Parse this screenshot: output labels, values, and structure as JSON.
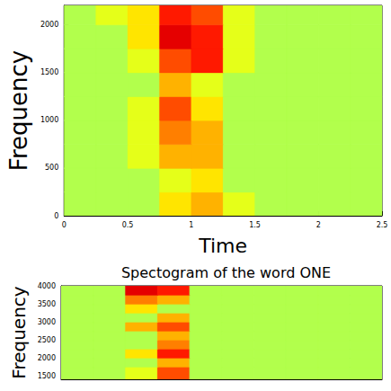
{
  "chart_data": [
    {
      "type": "heatmap",
      "x_label": "Time",
      "y_label": "Frequency",
      "xlim": [
        0,
        2.5
      ],
      "xticks": [
        0,
        0.5,
        1,
        1.5,
        2,
        2.5
      ],
      "ylim": [
        0,
        2200
      ],
      "yticks": [
        0,
        500,
        1000,
        1500,
        2000
      ],
      "x_edges": [
        0,
        0.25,
        0.5,
        0.75,
        1,
        1.25,
        1.5,
        1.75,
        2,
        2.25,
        2.5
      ],
      "y_edges": [
        0,
        250,
        500,
        750,
        1000,
        1250,
        1500,
        1750,
        2000,
        2200
      ],
      "clim": [
        0,
        1
      ],
      "cells": [
        [
          0.55,
          0.55,
          0.55,
          0.65,
          0.7,
          0.6,
          0.55,
          0.55,
          0.55,
          0.55
        ],
        [
          0.55,
          0.55,
          0.55,
          0.6,
          0.65,
          0.55,
          0.55,
          0.55,
          0.55,
          0.55
        ],
        [
          0.55,
          0.55,
          0.6,
          0.7,
          0.7,
          0.55,
          0.55,
          0.55,
          0.55,
          0.55
        ],
        [
          0.55,
          0.55,
          0.6,
          0.75,
          0.7,
          0.55,
          0.55,
          0.55,
          0.55,
          0.55
        ],
        [
          0.55,
          0.55,
          0.6,
          0.8,
          0.65,
          0.55,
          0.55,
          0.55,
          0.55,
          0.55
        ],
        [
          0.55,
          0.55,
          0.55,
          0.7,
          0.6,
          0.55,
          0.55,
          0.55,
          0.55,
          0.55
        ],
        [
          0.55,
          0.55,
          0.6,
          0.8,
          0.85,
          0.6,
          0.55,
          0.55,
          0.55,
          0.55
        ],
        [
          0.55,
          0.55,
          0.65,
          0.9,
          0.85,
          0.6,
          0.55,
          0.55,
          0.55,
          0.55
        ],
        [
          0.55,
          0.6,
          0.65,
          0.85,
          0.8,
          0.6,
          0.55,
          0.55,
          0.55,
          0.55
        ]
      ]
    },
    {
      "type": "heatmap",
      "title": "Spectogram of the word ONE",
      "y_label": "Frequency",
      "tick_labels": "y",
      "xlim": [
        0,
        2.5
      ],
      "ylim": [
        1400,
        4000
      ],
      "yticks": [
        1500,
        2000,
        2500,
        3000,
        3500,
        4000
      ],
      "x_edges": [
        0,
        0.25,
        0.5,
        0.75,
        1,
        1.25,
        1.5,
        1.75,
        2,
        2.25,
        2.5
      ],
      "y_edges": [
        1400,
        1750,
        2000,
        2250,
        2500,
        2750,
        3000,
        3250,
        3500,
        3750,
        4000
      ],
      "clim": [
        0,
        1
      ],
      "cells": [
        [
          0.55,
          0.55,
          0.6,
          0.8,
          0.55,
          0.55,
          0.55,
          0.55,
          0.55,
          0.55
        ],
        [
          0.55,
          0.55,
          0.55,
          0.7,
          0.55,
          0.55,
          0.55,
          0.55,
          0.55,
          0.55
        ],
        [
          0.55,
          0.55,
          0.65,
          0.85,
          0.55,
          0.55,
          0.55,
          0.55,
          0.55,
          0.55
        ],
        [
          0.55,
          0.55,
          0.55,
          0.75,
          0.55,
          0.55,
          0.55,
          0.55,
          0.55,
          0.55
        ],
        [
          0.55,
          0.55,
          0.55,
          0.7,
          0.55,
          0.55,
          0.55,
          0.55,
          0.55,
          0.55
        ],
        [
          0.55,
          0.55,
          0.7,
          0.8,
          0.55,
          0.55,
          0.55,
          0.55,
          0.55,
          0.55
        ],
        [
          0.55,
          0.55,
          0.55,
          0.7,
          0.55,
          0.55,
          0.55,
          0.55,
          0.55,
          0.55
        ],
        [
          0.55,
          0.55,
          0.65,
          0.55,
          0.55,
          0.55,
          0.55,
          0.55,
          0.55,
          0.55
        ],
        [
          0.55,
          0.55,
          0.75,
          0.7,
          0.55,
          0.55,
          0.55,
          0.55,
          0.55,
          0.55
        ],
        [
          0.55,
          0.55,
          0.9,
          0.85,
          0.55,
          0.55,
          0.55,
          0.55,
          0.55,
          0.55
        ]
      ]
    }
  ]
}
